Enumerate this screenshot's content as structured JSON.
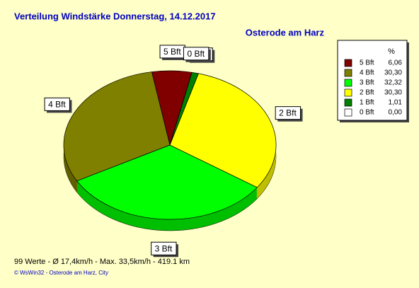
{
  "chart_data": {
    "type": "pie",
    "title": "Verteilung Windstärke  Donnerstag, 14.12.2017",
    "subtitle": "Osterode am Harz",
    "categories": [
      "5 Bft",
      "4 Bft",
      "3 Bft",
      "2 Bft",
      "1 Bft",
      "0 Bft"
    ],
    "values": [
      6.06,
      30.3,
      32.32,
      30.3,
      1.01,
      0.0
    ],
    "value_labels": [
      "6,06",
      "30,30",
      "32,32",
      "30,30",
      "1,01",
      "0,00"
    ],
    "colors": [
      "#800000",
      "#808000",
      "#00ff00",
      "#ffff00",
      "#008000",
      "#ffffff"
    ],
    "legend_title": "%",
    "footer": [
      "99 Werte   -   Ø 17,4km/h  -  Max. 33,5km/h   -   419.1 km",
      "© WsWin32  -  Osterode am Harz, City"
    ]
  }
}
